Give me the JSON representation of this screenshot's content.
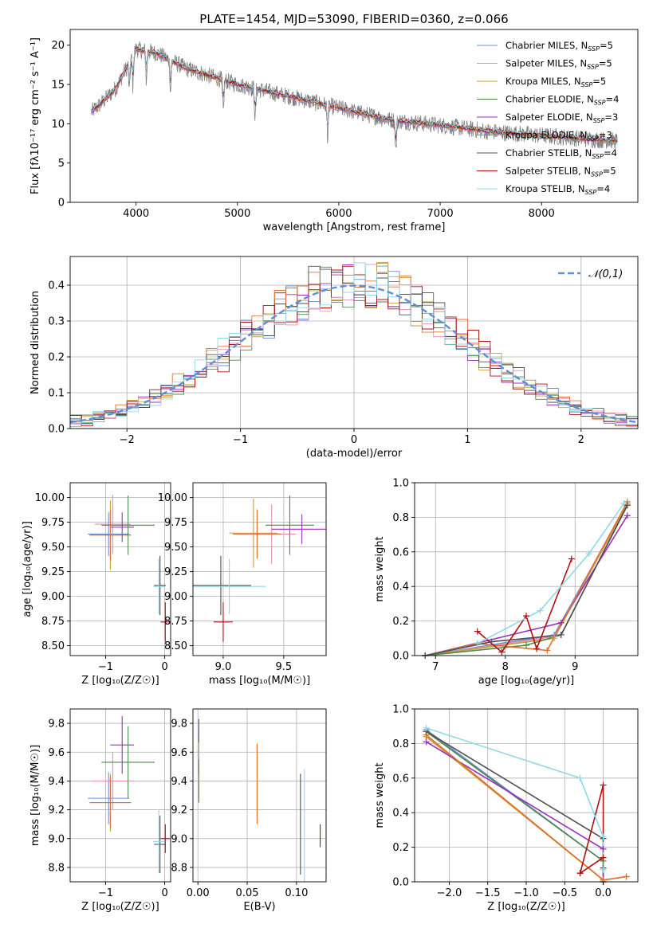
{
  "figure_title": "PLATE=1454, MJD=53090, FIBERID=0360, z=0.066",
  "legend": [
    {
      "name": "Chabrier MILES",
      "nssp": "5",
      "color": "#6a8fd8"
    },
    {
      "name": "Salpeter MILES",
      "nssp": "5",
      "color": "#e88fb8"
    },
    {
      "name": "Kroupa MILES",
      "nssp": "5",
      "color": "#c9a030"
    },
    {
      "name": "Chabrier ELODIE",
      "nssp": "4",
      "color": "#4a8a4a"
    },
    {
      "name": "Salpeter ELODIE",
      "nssp": "3",
      "color": "#9b30c0"
    },
    {
      "name": "Kroupa ELODIE",
      "nssp": "3",
      "color": "#e07030"
    },
    {
      "name": "Chabrier STELIB",
      "nssp": "4",
      "color": "#505050"
    },
    {
      "name": "Salpeter STELIB",
      "nssp": "5",
      "color": "#b01010"
    },
    {
      "name": "Kroupa STELIB",
      "nssp": "4",
      "color": "#90d8e8"
    }
  ],
  "data_color": "#808080",
  "chart_data": [
    {
      "id": "spectrum",
      "type": "line",
      "title": "PLATE=1454, MJD=53090, FIBERID=0360, z=0.066",
      "xlabel": "wavelength [Angstrom, rest frame]",
      "ylabel": "Flux [fλ10⁻¹⁷ erg cm⁻² s⁻¹ A⁻¹]",
      "xlim": [
        3350,
        8950
      ],
      "ylim": [
        0,
        22
      ],
      "xticks": [
        4000,
        5000,
        6000,
        7000,
        8000
      ],
      "yticks": [
        0,
        5,
        10,
        15,
        20
      ],
      "grid": false,
      "legend_position": "top-right",
      "continuum": [
        [
          3560,
          11.5
        ],
        [
          3650,
          12.5
        ],
        [
          3800,
          14.5
        ],
        [
          3900,
          17.0
        ],
        [
          4000,
          19.5
        ],
        [
          4200,
          19.0
        ],
        [
          4500,
          17.0
        ],
        [
          5000,
          15.0
        ],
        [
          5500,
          13.5
        ],
        [
          6000,
          12.0
        ],
        [
          6500,
          10.5
        ],
        [
          7000,
          9.8
        ],
        [
          7500,
          9.0
        ],
        [
          8000,
          8.5
        ],
        [
          8500,
          8.0
        ],
        [
          8750,
          7.8
        ]
      ],
      "absorption_lines": [
        3934,
        3969,
        4102,
        4340,
        4861,
        5175,
        5890,
        6563
      ]
    },
    {
      "id": "residual-hist",
      "type": "step",
      "xlabel": "(data-model)/error",
      "ylabel": "Normed distribution",
      "xlim": [
        -2.5,
        2.5
      ],
      "ylim": [
        0,
        0.48
      ],
      "xticks": [
        -2,
        -1,
        0,
        1,
        2
      ],
      "yticks": [
        0.0,
        0.1,
        0.2,
        0.3,
        0.4
      ],
      "grid": true,
      "legend_position": "top-right",
      "reference_label": "𝒩(0,1)",
      "reference_color": "#5b8fd6",
      "bin_width": 0.1
    },
    {
      "id": "age-vs-z",
      "type": "errorbar",
      "xlabel": "Z [log₁₀(Z/Z☉)]",
      "ylabel": "age  [log₁₀(age/yr)]",
      "xlim": [
        -1.6,
        0.1
      ],
      "ylim": [
        8.4,
        10.15
      ],
      "xticks": [
        -1,
        0
      ],
      "yticks": [
        8.5,
        8.75,
        9.0,
        9.25,
        9.5,
        9.75,
        10.0
      ],
      "grid": true,
      "points": [
        {
          "x": -0.95,
          "xe": 0.35,
          "y": 9.63,
          "ye": 0.22
        },
        {
          "x": -0.88,
          "xe": 0.3,
          "y": 9.73,
          "ye": 0.3
        },
        {
          "x": -0.92,
          "xe": 0.35,
          "y": 9.62,
          "ye": 0.35
        },
        {
          "x": -0.62,
          "xe": 0.45,
          "y": 9.72,
          "ye": 0.3
        },
        {
          "x": -0.72,
          "xe": 0.2,
          "y": 9.7,
          "ye": 0.15
        },
        {
          "x": -0.92,
          "xe": 0.35,
          "y": 9.62,
          "ye": 0.25
        },
        {
          "x": -0.08,
          "xe": 0.1,
          "y": 9.11,
          "ye": 0.3
        },
        {
          "x": 0.01,
          "xe": 0.08,
          "y": 8.74,
          "ye": 0.2
        },
        {
          "x": -0.1,
          "xe": 0.1,
          "y": 9.1,
          "ye": 0.28
        }
      ]
    },
    {
      "id": "age-vs-mass",
      "type": "errorbar",
      "xlabel": "mass [log₁₀(M/M☉)]",
      "ylabel": "",
      "xlim": [
        8.75,
        9.85
      ],
      "ylim": [
        8.4,
        10.15
      ],
      "xticks": [
        9.0,
        9.5
      ],
      "yticks": [
        8.5,
        8.75,
        9.0,
        9.25,
        9.5,
        9.75,
        10.0
      ],
      "grid": true,
      "points": [
        {
          "x": 9.28,
          "xe": 0.2,
          "y": 9.63,
          "ye": 0.22
        },
        {
          "x": 9.4,
          "xe": 0.2,
          "y": 9.63,
          "ye": 0.3
        },
        {
          "x": 9.25,
          "xe": 0.2,
          "y": 9.64,
          "ye": 0.35
        },
        {
          "x": 9.55,
          "xe": 0.2,
          "y": 9.72,
          "ye": 0.3
        },
        {
          "x": 9.65,
          "xe": 0.25,
          "y": 9.68,
          "ye": 0.15
        },
        {
          "x": 9.28,
          "xe": 0.2,
          "y": 9.63,
          "ye": 0.25
        },
        {
          "x": 8.98,
          "xe": 0.25,
          "y": 9.11,
          "ye": 0.3
        },
        {
          "x": 9.0,
          "xe": 0.08,
          "y": 8.74,
          "ye": 0.2
        },
        {
          "x": 9.05,
          "xe": 0.3,
          "y": 9.1,
          "ye": 0.28
        }
      ]
    },
    {
      "id": "massweight-vs-age",
      "type": "line",
      "xlabel": "age  [log₁₀(age/yr)]",
      "ylabel": "mass weight",
      "xlim": [
        6.7,
        9.9
      ],
      "ylim": [
        0,
        1
      ],
      "xticks": [
        7,
        8,
        9
      ],
      "yticks": [
        0.0,
        0.2,
        0.4,
        0.6,
        0.8,
        1.0
      ],
      "grid": true,
      "series": [
        {
          "x": [
            6.85,
            8.7,
            9.75
          ],
          "y": [
            0.0,
            0.12,
            0.88
          ]
        },
        {
          "x": [
            6.85,
            8.7,
            9.75
          ],
          "y": [
            0.0,
            0.11,
            0.87
          ]
        },
        {
          "x": [
            6.85,
            8.7,
            9.75
          ],
          "y": [
            0.0,
            0.1,
            0.88
          ]
        },
        {
          "x": [
            6.85,
            8.3,
            8.8,
            9.75
          ],
          "y": [
            0.0,
            0.06,
            0.12,
            0.87
          ]
        },
        {
          "x": [
            6.85,
            8.8,
            9.75
          ],
          "y": [
            0.0,
            0.19,
            0.81
          ]
        },
        {
          "x": [
            6.85,
            7.6,
            8.6,
            9.75
          ],
          "y": [
            0.0,
            0.07,
            0.03,
            0.89
          ]
        },
        {
          "x": [
            6.85,
            7.8,
            8.8,
            9.75
          ],
          "y": [
            0.0,
            0.08,
            0.12,
            0.87
          ]
        },
        {
          "x": [
            7.6,
            7.95,
            8.3,
            8.45,
            8.95
          ],
          "y": [
            0.14,
            0.02,
            0.23,
            0.04,
            0.56
          ]
        },
        {
          "x": [
            7.6,
            8.5,
            9.2,
            9.7
          ],
          "y": [
            0.07,
            0.26,
            0.59,
            0.88
          ]
        }
      ]
    },
    {
      "id": "mass-vs-z",
      "type": "errorbar",
      "xlabel": "Z [log₁₀(Z/Z☉)]",
      "ylabel": "mass [log₁₀(M/M☉)]",
      "xlim": [
        -1.6,
        0.1
      ],
      "ylim": [
        8.7,
        9.9
      ],
      "xticks": [
        -1,
        0
      ],
      "yticks": [
        8.8,
        9.0,
        9.2,
        9.4,
        9.6,
        9.8
      ],
      "grid": true,
      "points": [
        {
          "x": -0.95,
          "xe": 0.35,
          "y": 9.28,
          "ye": 0.18
        },
        {
          "x": -0.88,
          "xe": 0.35,
          "y": 9.4,
          "ye": 0.2
        },
        {
          "x": -0.92,
          "xe": 0.35,
          "y": 9.25,
          "ye": 0.2
        },
        {
          "x": -0.62,
          "xe": 0.45,
          "y": 9.53,
          "ye": 0.25
        },
        {
          "x": -0.72,
          "xe": 0.2,
          "y": 9.65,
          "ye": 0.2
        },
        {
          "x": -0.92,
          "xe": 0.35,
          "y": 9.25,
          "ye": 0.18
        },
        {
          "x": -0.08,
          "xe": 0.1,
          "y": 8.96,
          "ye": 0.2
        },
        {
          "x": 0.01,
          "xe": 0.08,
          "y": 9.0,
          "ye": 0.1
        },
        {
          "x": -0.1,
          "xe": 0.1,
          "y": 8.98,
          "ye": 0.22
        }
      ]
    },
    {
      "id": "mass-vs-ebv",
      "type": "errorbar",
      "xlabel": "E(B-V)",
      "ylabel": "",
      "xlim": [
        -0.005,
        0.13
      ],
      "ylim": [
        8.7,
        9.9
      ],
      "xticks": [
        0.0,
        0.05,
        0.1
      ],
      "yticks": [
        8.8,
        9.0,
        9.2,
        9.4,
        9.6,
        9.8
      ],
      "grid": true,
      "points": [
        {
          "x": 0.001,
          "xe": 0,
          "y": 9.6,
          "ye": 0.15
        },
        {
          "x": 0.06,
          "xe": 0,
          "y": 9.4,
          "ye": 0.25
        },
        {
          "x": 0.001,
          "xe": 0,
          "y": 9.6,
          "ye": 0.12
        },
        {
          "x": 0.001,
          "xe": 0,
          "y": 9.4,
          "ye": 0.15
        },
        {
          "x": 0.001,
          "xe": 0,
          "y": 9.75,
          "ye": 0.08
        },
        {
          "x": 0.06,
          "xe": 0,
          "y": 9.38,
          "ye": 0.28
        },
        {
          "x": 0.104,
          "xe": 0,
          "y": 9.1,
          "ye": 0.35
        },
        {
          "x": 0.124,
          "xe": 0,
          "y": 9.02,
          "ye": 0.08
        },
        {
          "x": 0.108,
          "xe": 0,
          "y": 9.08,
          "ye": 0.4
        }
      ]
    },
    {
      "id": "massweight-vs-z",
      "type": "line",
      "xlabel": "Z [log₁₀(Z/Z☉)]",
      "ylabel": "mass weight",
      "xlim": [
        -2.45,
        0.45
      ],
      "ylim": [
        0,
        1
      ],
      "xticks": [
        -2.0,
        -1.5,
        -1.0,
        -0.5,
        0.0
      ],
      "yticks": [
        0.0,
        0.2,
        0.4,
        0.6,
        0.8,
        1.0
      ],
      "grid": true,
      "series": [
        {
          "x": [
            -2.3,
            0.0,
            0.0
          ],
          "y": [
            0.88,
            0.12,
            0.0
          ]
        },
        {
          "x": [
            -2.3,
            0.0,
            0.3
          ],
          "y": [
            0.85,
            0.01,
            0.03
          ]
        },
        {
          "x": [
            -2.3,
            0.0,
            0.3
          ],
          "y": [
            0.84,
            0.01,
            0.03
          ]
        },
        {
          "x": [
            -2.3,
            0.0,
            0.0
          ],
          "y": [
            0.87,
            0.12,
            0.0
          ]
        },
        {
          "x": [
            -2.3,
            0.0,
            0.0
          ],
          "y": [
            0.81,
            0.19,
            0.0
          ]
        },
        {
          "x": [
            -2.3,
            0.0,
            0.3
          ],
          "y": [
            0.85,
            0.01,
            0.03
          ]
        },
        {
          "x": [
            -2.3,
            0.0,
            0.0
          ],
          "y": [
            0.87,
            0.25,
            0.08
          ]
        },
        {
          "x": [
            -0.3,
            0.0,
            0.0,
            -0.3
          ],
          "y": [
            0.05,
            0.14,
            0.56,
            0.05
          ]
        },
        {
          "x": [
            -2.3,
            -0.3,
            0.0,
            0.0
          ],
          "y": [
            0.89,
            0.6,
            0.26,
            0.07
          ]
        }
      ]
    }
  ]
}
